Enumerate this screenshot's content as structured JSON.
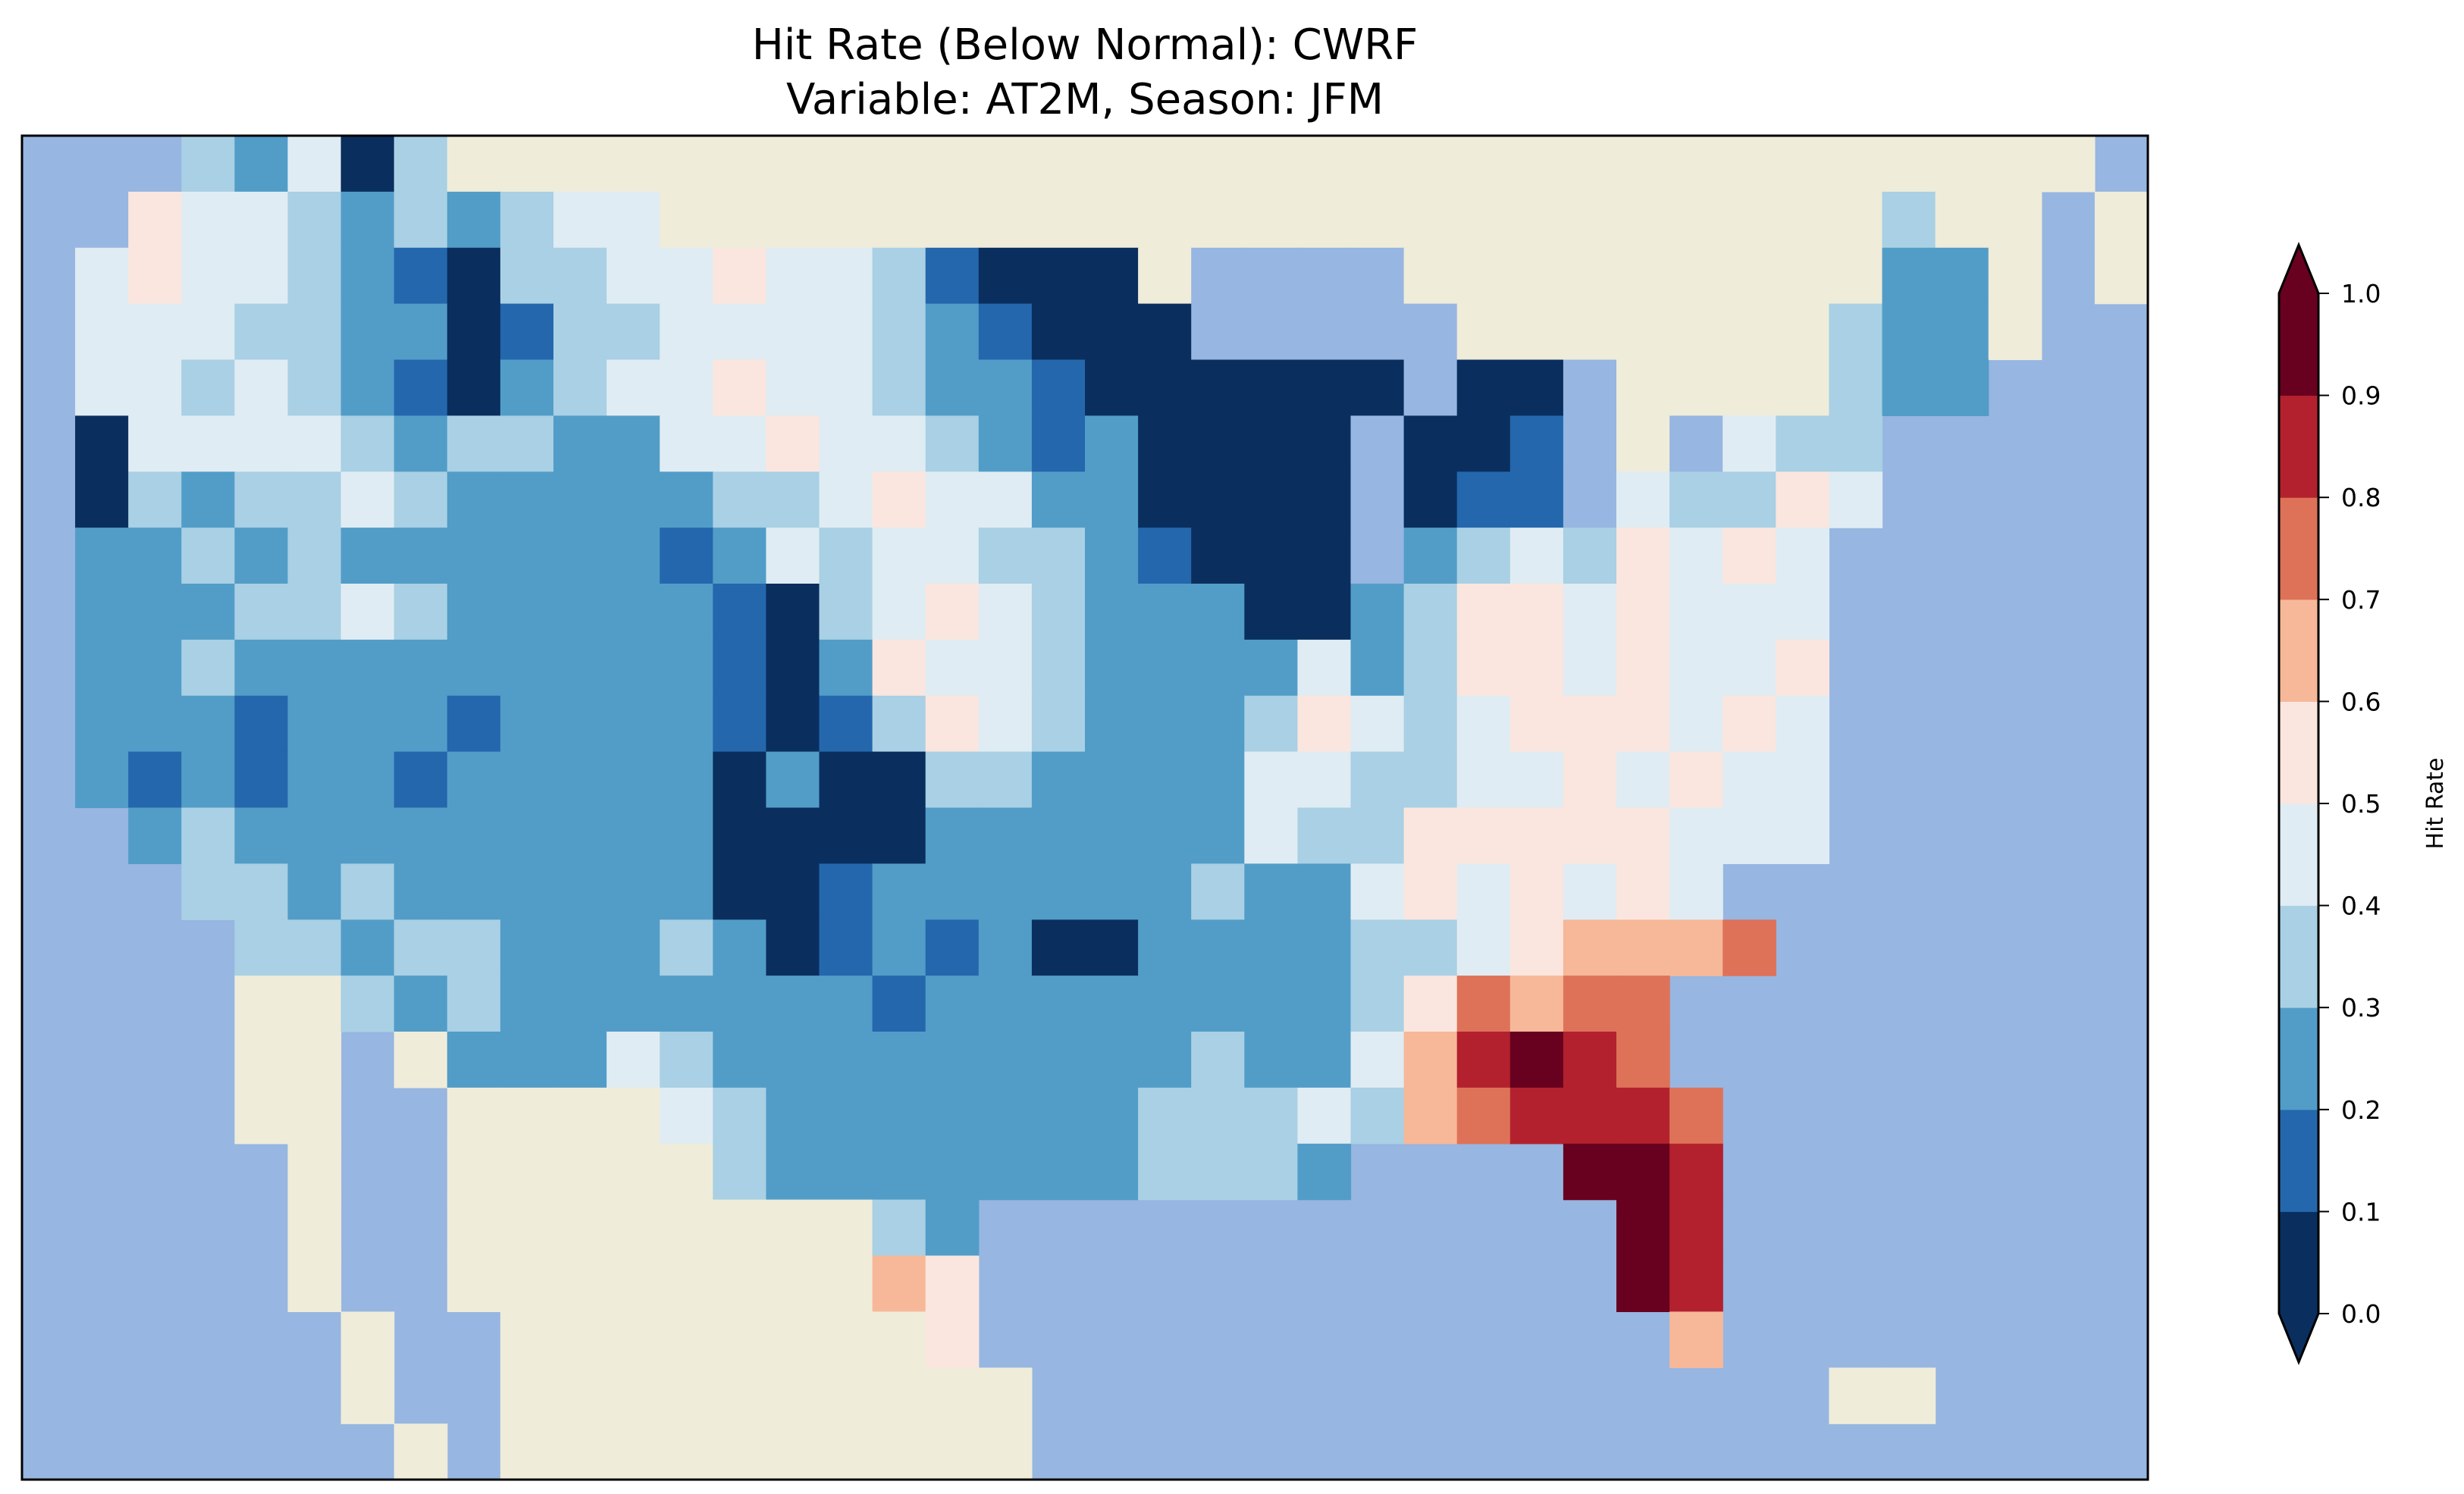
{
  "title_line1": "Hit Rate (Below Normal): CWRF",
  "title_line2": "Variable: AT2M, Season: JFM",
  "chart_data": {
    "type": "heatmap",
    "title": "Hit Rate (Below Normal): CWRF\nVariable: AT2M, Season: JFM",
    "region": "Contiguous United States",
    "colorbar": {
      "label": "Hit Rate",
      "range": [
        0.0,
        1.0
      ],
      "extend": "both",
      "ticks": [
        "0.0",
        "0.1",
        "0.2",
        "0.3",
        "0.4",
        "0.5",
        "0.6",
        "0.7",
        "0.8",
        "0.9",
        "1.0"
      ],
      "bin_colors": [
        "#0a2f5e",
        "#2467ad",
        "#529dc8",
        "#a9d0e4",
        "#e0ecf3",
        "#fae6de",
        "#f6b899",
        "#de7259",
        "#b3212e",
        "#68001f"
      ]
    },
    "background_colors": {
      "ocean": "#97b6e1",
      "land": "#efecda",
      "lake": "#97b6e1"
    },
    "grid_legend": ". = ocean, L = non-US land, w = lake, 0-9 = hit-rate bin (0.0-0.1 ... 0.9-1.0)",
    "grid": [
      "...32403LLLLLLLLLLLLLLLLLLLLLLLLLLLLLLL.",
      "..5443232344LLLLLLLLLLLLLLLLLLLLLLL3LL.L",
      ".45443210334454431000LwwwwLLLLLLLLL22L.L",
      ".444332201334444321000wwwwwLLLLLLL322L..",
      ".4434321023445443221000000w00wLLLL322....",
      ".044443233224454432120000w001wLw433.....",
      ".032334322222334544220000w011w43354.....",
      ".223232222221243443321000w23435454......",
      ".222334322222103454322200235545444......",
      ".223222222222102544322224235545445......",
      ".222122212222101354322235434555454......",
      ".212122122222020033222244334454544......",
      "..23222222222000022222243355555444......",
      "...3323222222001222222322454545 4........",
      "....3323322232012120022223345666 7........",
      "....LL3232222222122222222357677.........",
      "....LL.L22243222222222322468987.........",
      "....LL..LLLL4322222223334367888 7.........",
      ".....L..LLLLL322222223332....998........",
      ".....L..LLLLLLLL32............98........",
      ".....L..LLLLLLLL65............98........",
      "......L..LLLLLLLL5.............6........",
      "......L..LLLLLLLLLL...............LL....",
      ".......L.LLLLLLLLLL....................."
    ]
  }
}
